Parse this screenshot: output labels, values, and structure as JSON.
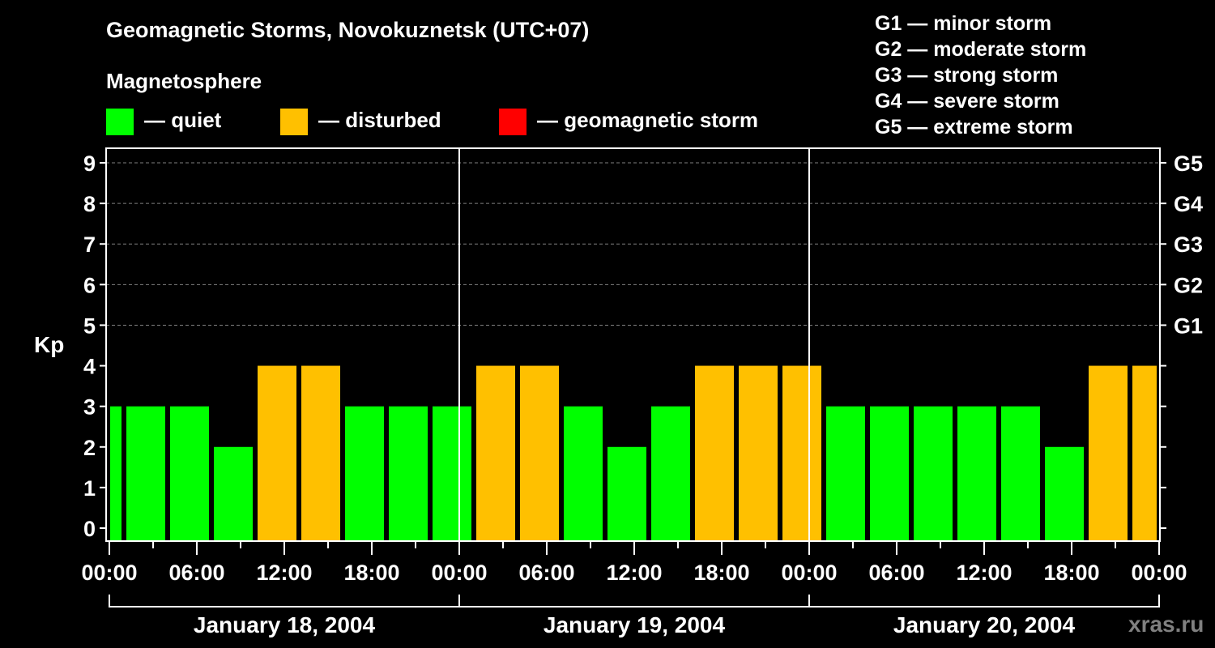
{
  "colors": {
    "quiet": "#00ff00",
    "disturbed": "#ffc000",
    "storm": "#ff0000",
    "grid": "#808080"
  },
  "chart_data": {
    "type": "bar",
    "title": "Geomagnetic Storms, Novokuznetsk (UTC+07)",
    "legend_title": "Magnetosphere",
    "legend": [
      {
        "key": "quiet",
        "label": "— quiet"
      },
      {
        "key": "disturbed",
        "label": "— disturbed"
      },
      {
        "key": "storm",
        "label": "— geomagnetic storm"
      }
    ],
    "storm_scale": [
      "G1 — minor storm",
      "G2 — moderate storm",
      "G3 — strong storm",
      "G4 — severe storm",
      "G5 — extreme storm"
    ],
    "ylabel": "Kp",
    "ylim": [
      0,
      9
    ],
    "y_ticks": [
      "0",
      "1",
      "2",
      "3",
      "4",
      "5",
      "6",
      "7",
      "8",
      "9"
    ],
    "right_ticks": [
      {
        "kp": 5,
        "label": "G1"
      },
      {
        "kp": 6,
        "label": "G2"
      },
      {
        "kp": 7,
        "label": "G3"
      },
      {
        "kp": 8,
        "label": "G4"
      },
      {
        "kp": 9,
        "label": "G5"
      }
    ],
    "x_ticks": [
      "00:00",
      "06:00",
      "12:00",
      "18:00",
      "00:00",
      "06:00",
      "12:00",
      "18:00",
      "00:00",
      "06:00",
      "12:00",
      "18:00",
      "00:00"
    ],
    "days": [
      "January 18, 2004",
      "January 19, 2004",
      "January 20, 2004"
    ],
    "x_range_hours": [
      0,
      72
    ],
    "interval_hours": 3,
    "first_interval_start_hour": -2,
    "values": [
      3,
      3,
      3,
      2,
      4,
      4,
      3,
      3,
      3,
      4,
      4,
      3,
      2,
      3,
      4,
      4,
      4,
      3,
      3,
      3,
      3,
      3,
      2,
      4,
      4
    ],
    "levels": [
      "quiet",
      "quiet",
      "quiet",
      "quiet",
      "disturbed",
      "disturbed",
      "quiet",
      "quiet",
      "quiet",
      "disturbed",
      "disturbed",
      "quiet",
      "quiet",
      "quiet",
      "disturbed",
      "disturbed",
      "disturbed",
      "quiet",
      "quiet",
      "quiet",
      "quiet",
      "quiet",
      "quiet",
      "disturbed",
      "disturbed"
    ]
  },
  "watermark": "xras.ru"
}
